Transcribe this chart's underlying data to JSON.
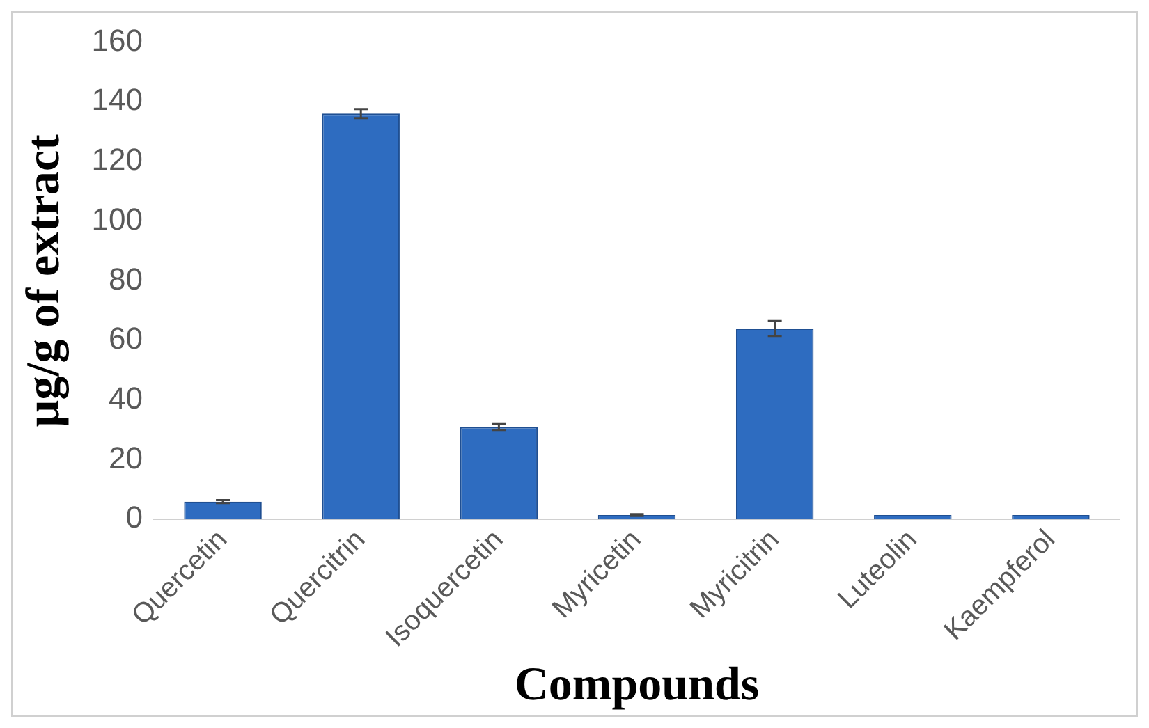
{
  "chart_data": {
    "type": "bar",
    "xlabel": "Compounds",
    "ylabel": "µg/g of extract",
    "categories": [
      "Quercetin",
      "Quercitrin",
      "Isoquercetin",
      "Myricetin",
      "Myricitrin",
      "Luteolin",
      "Kaempferol"
    ],
    "values": [
      6,
      136,
      31,
      1.5,
      64,
      1.5,
      1.5
    ],
    "errors": [
      0.5,
      1.5,
      1,
      0.3,
      2.5,
      null,
      null
    ],
    "color": "#2e6cc0",
    "ylim": [
      0,
      160
    ],
    "yticks": [
      0,
      20,
      40,
      60,
      80,
      100,
      120,
      140,
      160
    ],
    "grid": false,
    "legend": false
  }
}
